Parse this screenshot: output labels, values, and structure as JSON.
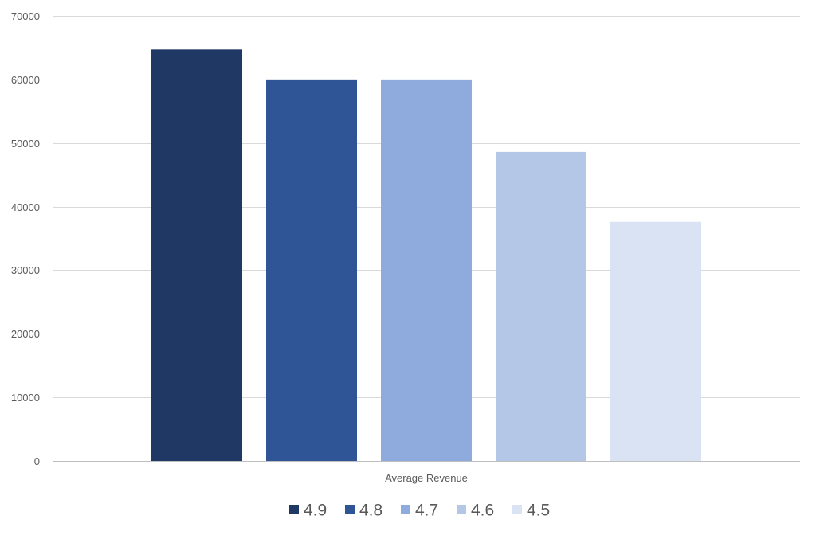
{
  "chart_data": {
    "type": "bar",
    "title": "",
    "xlabel": "Average Revenue",
    "ylabel": "",
    "categories": [
      "Average Revenue"
    ],
    "series": [
      {
        "name": "4.9",
        "values": [
          64700
        ],
        "color": "#203864"
      },
      {
        "name": "4.8",
        "values": [
          60000
        ],
        "color": "#2f5597"
      },
      {
        "name": "4.7",
        "values": [
          60000
        ],
        "color": "#8faadc"
      },
      {
        "name": "4.6",
        "values": [
          48600
        ],
        "color": "#b4c7e7"
      },
      {
        "name": "4.5",
        "values": [
          37600
        ],
        "color": "#dae3f3"
      }
    ],
    "ylim": [
      0,
      70000
    ],
    "yticks": [
      0,
      10000,
      20000,
      30000,
      40000,
      50000,
      60000,
      70000
    ],
    "grid": true,
    "legend_position": "bottom"
  }
}
